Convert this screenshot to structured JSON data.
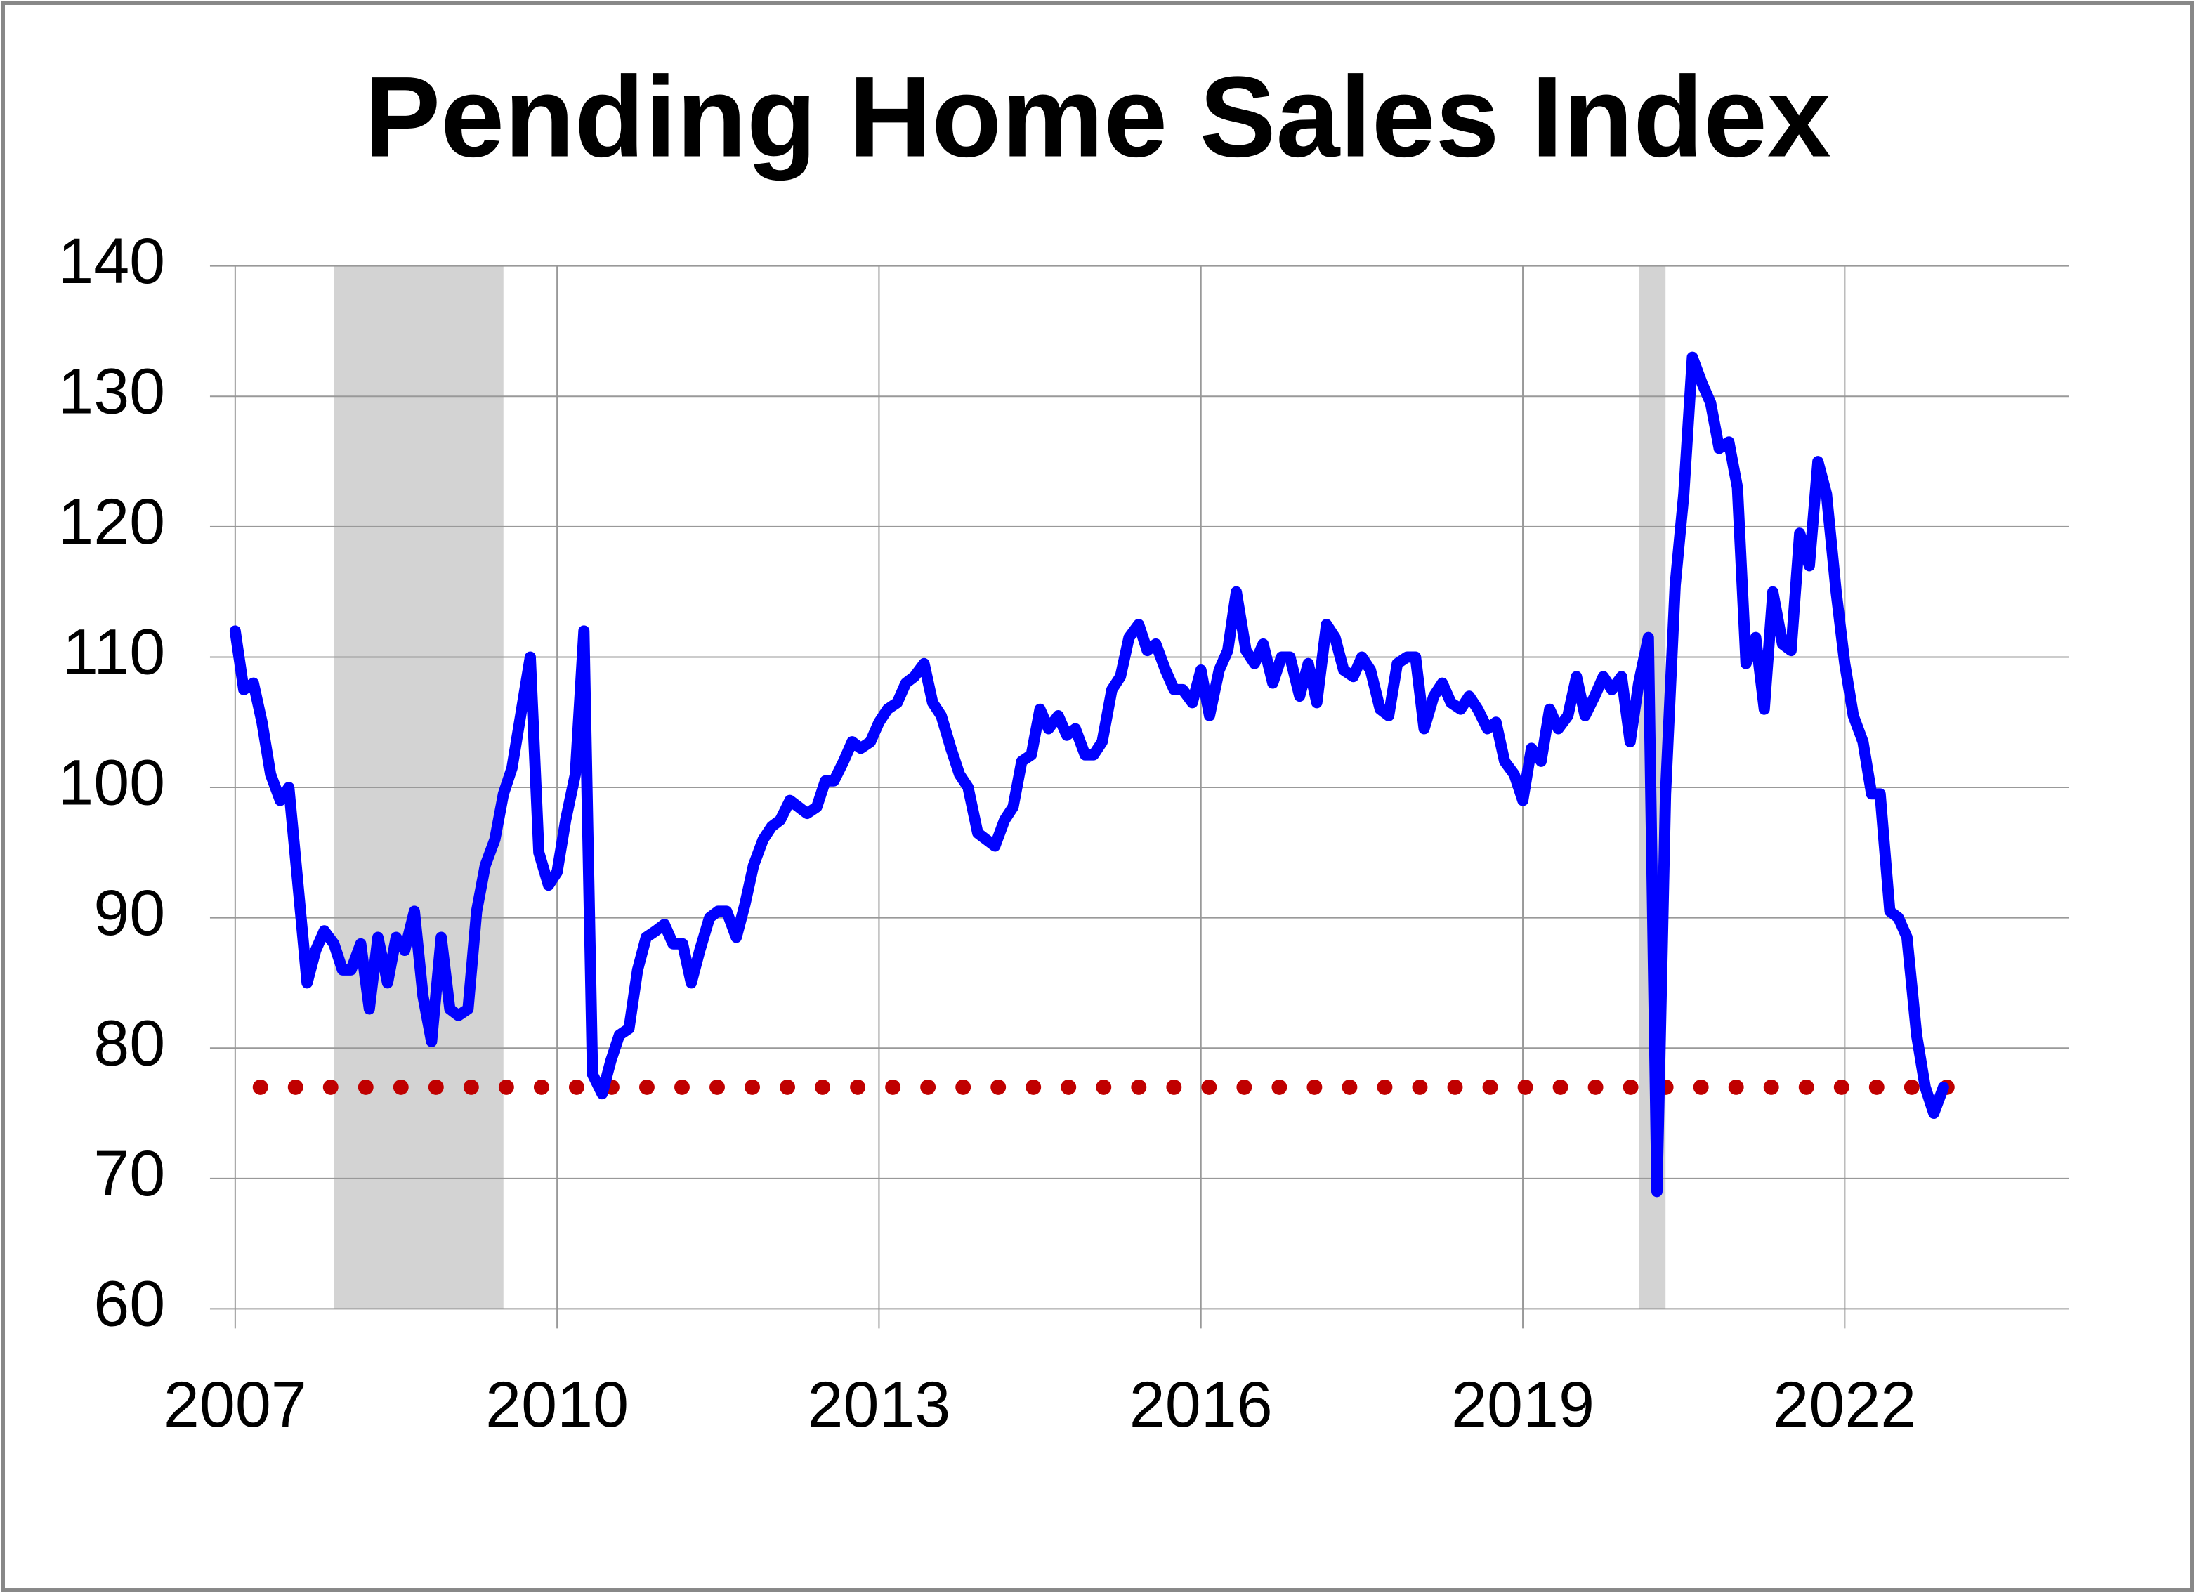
{
  "chart_data": {
    "type": "line",
    "title": "Pending Home Sales Index",
    "xlim": [
      2007,
      2024.09
    ],
    "xticks": [
      2007,
      2010,
      2013,
      2016,
      2019,
      2022
    ],
    "ylim": [
      60,
      140
    ],
    "yticks": [
      60,
      70,
      80,
      90,
      100,
      110,
      120,
      130,
      140
    ],
    "grid": true,
    "shaded_periods": [
      [
        2007.92,
        2009.5
      ],
      [
        2020.08,
        2020.33
      ]
    ],
    "shade_color": "#d3d3d3",
    "reference_line": {
      "value": 77,
      "color": "#c00000"
    },
    "x": [
      2007,
      2007.08,
      2007.17,
      2007.25,
      2007.33,
      2007.42,
      2007.5,
      2007.58,
      2007.67,
      2007.75,
      2007.83,
      2007.92,
      2008,
      2008.08,
      2008.17,
      2008.25,
      2008.33,
      2008.42,
      2008.5,
      2008.58,
      2008.67,
      2008.75,
      2008.83,
      2008.92,
      2009,
      2009.08,
      2009.17,
      2009.25,
      2009.33,
      2009.42,
      2009.5,
      2009.58,
      2009.67,
      2009.75,
      2009.83,
      2009.92,
      2010,
      2010.08,
      2010.17,
      2010.25,
      2010.33,
      2010.42,
      2010.5,
      2010.58,
      2010.67,
      2010.75,
      2010.83,
      2010.92,
      2011,
      2011.08,
      2011.17,
      2011.25,
      2011.33,
      2011.42,
      2011.5,
      2011.58,
      2011.67,
      2011.75,
      2011.83,
      2011.92,
      2012,
      2012.08,
      2012.17,
      2012.25,
      2012.33,
      2012.42,
      2012.5,
      2012.58,
      2012.67,
      2012.75,
      2012.83,
      2012.92,
      2013,
      2013.08,
      2013.17,
      2013.25,
      2013.33,
      2013.42,
      2013.5,
      2013.58,
      2013.67,
      2013.75,
      2013.83,
      2013.92,
      2014,
      2014.08,
      2014.17,
      2014.25,
      2014.33,
      2014.42,
      2014.5,
      2014.58,
      2014.67,
      2014.75,
      2014.83,
      2014.92,
      2015,
      2015.08,
      2015.17,
      2015.25,
      2015.33,
      2015.42,
      2015.5,
      2015.58,
      2015.67,
      2015.75,
      2015.83,
      2015.92,
      2016,
      2016.08,
      2016.17,
      2016.25,
      2016.33,
      2016.42,
      2016.5,
      2016.58,
      2016.67,
      2016.75,
      2016.83,
      2016.92,
      2017,
      2017.08,
      2017.17,
      2017.25,
      2017.33,
      2017.42,
      2017.5,
      2017.58,
      2017.67,
      2017.75,
      2017.83,
      2017.92,
      2018,
      2018.08,
      2018.17,
      2018.25,
      2018.33,
      2018.42,
      2018.5,
      2018.58,
      2018.67,
      2018.75,
      2018.83,
      2018.92,
      2019,
      2019.08,
      2019.17,
      2019.25,
      2019.33,
      2019.42,
      2019.5,
      2019.58,
      2019.67,
      2019.75,
      2019.83,
      2019.92,
      2020,
      2020.08,
      2020.17,
      2020.25,
      2020.33,
      2020.42,
      2020.5,
      2020.58,
      2020.67,
      2020.75,
      2020.83,
      2020.92,
      2021,
      2021.08,
      2021.17,
      2021.25,
      2021.33,
      2021.42,
      2021.5,
      2021.58,
      2021.67,
      2021.75,
      2021.83,
      2021.92,
      2022,
      2022.08,
      2022.17,
      2022.25,
      2022.33,
      2022.42,
      2022.5,
      2022.58,
      2022.67,
      2022.75,
      2022.83,
      2022.92
    ],
    "series": [
      {
        "color": "#0000ff",
        "values": [
          112,
          107.5,
          108,
          105,
          101,
          99,
          100,
          93,
          85,
          87.5,
          89,
          88,
          86,
          86,
          88,
          83,
          88.5,
          85,
          88.5,
          87.5,
          90.5,
          84,
          80.5,
          88.5,
          83,
          82.5,
          83,
          90.5,
          94,
          96,
          99.5,
          101.5,
          106,
          110,
          95,
          92.5,
          93.5,
          97.5,
          101,
          112,
          78,
          76.5,
          79,
          81,
          81.5,
          86,
          88.5,
          89,
          89.5,
          88,
          88,
          85,
          87.5,
          90,
          90.5,
          90.5,
          88.5,
          91,
          94,
          96,
          97,
          97.5,
          99,
          98.5,
          98,
          98.5,
          100.5,
          100.5,
          102,
          103.5,
          103,
          103.5,
          105,
          106,
          106.5,
          108,
          108.5,
          109.5,
          106.5,
          105.5,
          103,
          101,
          100,
          96.5,
          96,
          95.5,
          97.5,
          98.5,
          102,
          102.5,
          106,
          104.5,
          105.5,
          104,
          104.5,
          102.5,
          102.5,
          103.5,
          107.5,
          108.5,
          111.5,
          112.5,
          110.5,
          111,
          109,
          107.5,
          107.5,
          106.5,
          109,
          105.5,
          109,
          110.5,
          115,
          110.5,
          109.5,
          111,
          108,
          110,
          110,
          107,
          109.5,
          106.5,
          112.5,
          111.5,
          109,
          108.5,
          110,
          109,
          106,
          105.5,
          109.5,
          110,
          110,
          104.5,
          107,
          108,
          106.5,
          106,
          107,
          106,
          104.5,
          105,
          102,
          101,
          99,
          103,
          102,
          106,
          104.5,
          105.5,
          108.5,
          105.5,
          107,
          108.5,
          107.5,
          108.5,
          103.5,
          108,
          111.5,
          69,
          99.5,
          115.5,
          122.5,
          133,
          131,
          129.5,
          126,
          126.5,
          123,
          109.5,
          111.5,
          106,
          115,
          111,
          110.5,
          119.5,
          117,
          125,
          122.5,
          115,
          109.5,
          105.5,
          103.5,
          99.5,
          99.5,
          90.5,
          90,
          88.5,
          81,
          77,
          75,
          77
        ]
      }
    ]
  }
}
